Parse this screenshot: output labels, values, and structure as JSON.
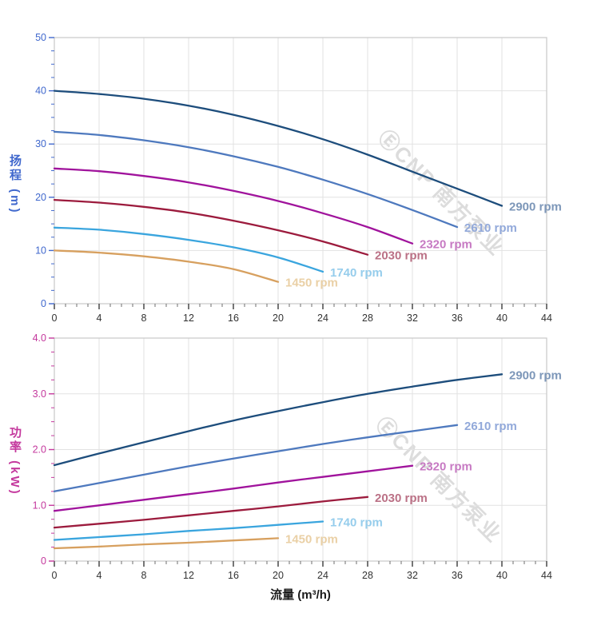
{
  "watermark": {
    "text": "ⒺCNP 南方泵业"
  },
  "chart_data": [
    {
      "id": "head",
      "type": "line",
      "title": "",
      "xlabel": "",
      "ylabel": "扬程 (m)",
      "xlim": [
        0,
        44
      ],
      "ylim": [
        0,
        50
      ],
      "x_ticks": [
        0,
        4,
        8,
        12,
        16,
        20,
        24,
        28,
        32,
        36,
        40,
        44
      ],
      "x_minor": 1,
      "y_ticks": [
        {
          "v": 0,
          "label": "0"
        },
        {
          "v": 10,
          "label": "10"
        },
        {
          "v": 20,
          "label": "20"
        },
        {
          "v": 30,
          "label": "30"
        },
        {
          "v": 40,
          "label": "40"
        },
        {
          "v": 50,
          "label": "50"
        }
      ],
      "y_minor": 2.5,
      "grid": true,
      "legend_position": "labels-at-line-ends",
      "axis_color": "#4068cd",
      "series": [
        {
          "name": "2900 rpm",
          "color": "#1d4d7c",
          "label_color": "#7d97b9",
          "x": [
            0,
            4,
            8,
            12,
            16,
            20,
            24,
            28,
            32,
            36,
            40
          ],
          "y": [
            40.0,
            39.4,
            38.5,
            37.2,
            35.5,
            33.4,
            30.9,
            28.0,
            24.8,
            21.6,
            18.4
          ]
        },
        {
          "name": "2610 rpm",
          "color": "#4e79be",
          "label_color": "#92a9da",
          "x": [
            0,
            4,
            8,
            12,
            16,
            20,
            24,
            28,
            32,
            36
          ],
          "y": [
            32.3,
            31.7,
            30.7,
            29.4,
            27.7,
            25.7,
            23.3,
            20.6,
            17.6,
            14.4
          ]
        },
        {
          "name": "2320 rpm",
          "color": "#a0139c",
          "label_color": "#c77ac3",
          "x": [
            0,
            4,
            8,
            12,
            16,
            20,
            24,
            28,
            32
          ],
          "y": [
            25.4,
            24.9,
            24.0,
            22.8,
            21.2,
            19.3,
            17.0,
            14.4,
            11.3
          ]
        },
        {
          "name": "2030 rpm",
          "color": "#9c1b3d",
          "label_color": "#bb7186",
          "x": [
            0,
            4,
            8,
            12,
            16,
            20,
            24,
            28
          ],
          "y": [
            19.5,
            19.0,
            18.2,
            17.1,
            15.6,
            13.8,
            11.7,
            9.2
          ]
        },
        {
          "name": "1740 rpm",
          "color": "#3aa5de",
          "label_color": "#96cdec",
          "x": [
            0,
            4,
            8,
            12,
            16,
            20,
            24
          ],
          "y": [
            14.3,
            13.9,
            13.1,
            12.0,
            10.6,
            8.7,
            6.0
          ]
        },
        {
          "name": "1450 rpm",
          "color": "#d7a05f",
          "label_color": "#ead0a6",
          "x": [
            0,
            4,
            8,
            12,
            16,
            20
          ],
          "y": [
            10.0,
            9.6,
            8.9,
            7.9,
            6.5,
            4.1
          ]
        }
      ]
    },
    {
      "id": "power",
      "type": "line",
      "title": "",
      "xlabel": "流量 (m³/h)",
      "ylabel": "功率 (kW)",
      "xlim": [
        0,
        44
      ],
      "ylim": [
        0,
        4
      ],
      "x_ticks": [
        0,
        4,
        8,
        12,
        16,
        20,
        24,
        28,
        32,
        36,
        40,
        44
      ],
      "x_minor": 1,
      "y_ticks": [
        {
          "v": 0,
          "label": "0"
        },
        {
          "v": 1,
          "label": "1.0"
        },
        {
          "v": 2,
          "label": "2.0"
        },
        {
          "v": 3,
          "label": "3.0"
        },
        {
          "v": 4,
          "label": "4.0"
        }
      ],
      "y_minor": 0.25,
      "grid": true,
      "legend_position": "labels-at-line-ends",
      "axis_color": "#c4389d",
      "series": [
        {
          "name": "2900 rpm",
          "color": "#1d4d7c",
          "label_color": "#7d97b9",
          "x": [
            0,
            4,
            8,
            12,
            16,
            20,
            24,
            28,
            32,
            36,
            40
          ],
          "y": [
            1.72,
            1.93,
            2.13,
            2.33,
            2.52,
            2.69,
            2.85,
            3.0,
            3.13,
            3.25,
            3.35
          ]
        },
        {
          "name": "2610 rpm",
          "color": "#4e79be",
          "label_color": "#92a9da",
          "x": [
            0,
            4,
            8,
            12,
            16,
            20,
            24,
            28,
            32,
            36
          ],
          "y": [
            1.25,
            1.4,
            1.55,
            1.7,
            1.84,
            1.97,
            2.1,
            2.22,
            2.33,
            2.44
          ]
        },
        {
          "name": "2320 rpm",
          "color": "#a0139c",
          "label_color": "#c77ac3",
          "x": [
            0,
            4,
            8,
            12,
            16,
            20,
            24,
            28,
            32
          ],
          "y": [
            0.9,
            1.0,
            1.1,
            1.2,
            1.3,
            1.41,
            1.51,
            1.61,
            1.71
          ]
        },
        {
          "name": "2030 rpm",
          "color": "#9c1b3d",
          "label_color": "#bb7186",
          "x": [
            0,
            4,
            8,
            12,
            16,
            20,
            24,
            28
          ],
          "y": [
            0.6,
            0.67,
            0.74,
            0.82,
            0.9,
            0.98,
            1.07,
            1.15
          ]
        },
        {
          "name": "1740 rpm",
          "color": "#3aa5de",
          "label_color": "#96cdec",
          "x": [
            0,
            4,
            8,
            12,
            16,
            20,
            24
          ],
          "y": [
            0.38,
            0.43,
            0.48,
            0.54,
            0.59,
            0.65,
            0.71
          ]
        },
        {
          "name": "1450 rpm",
          "color": "#d7a05f",
          "label_color": "#ead0a6",
          "x": [
            0,
            4,
            8,
            12,
            16,
            20
          ],
          "y": [
            0.23,
            0.26,
            0.3,
            0.33,
            0.37,
            0.41
          ]
        }
      ]
    }
  ]
}
